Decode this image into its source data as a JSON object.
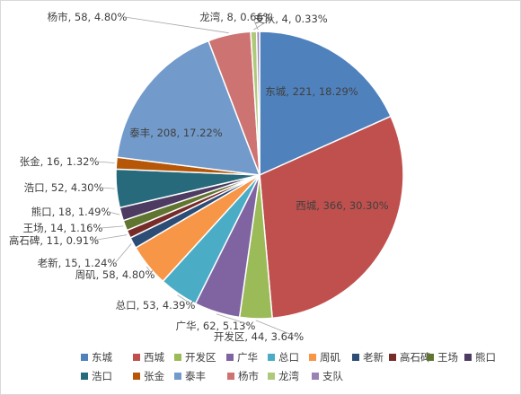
{
  "chart_data": {
    "type": "pie",
    "title": "",
    "slices": [
      {
        "name": "东城",
        "value": 221,
        "percent": "18.29%",
        "color": "#4f81bd"
      },
      {
        "name": "西城",
        "value": 366,
        "percent": "30.30%",
        "color": "#c0504d"
      },
      {
        "name": "开发区",
        "value": 44,
        "percent": "3.64%",
        "color": "#9bbb59"
      },
      {
        "name": "广华",
        "value": 62,
        "percent": "5.13%",
        "color": "#8064a2"
      },
      {
        "name": "总口",
        "value": 53,
        "percent": "4.39%",
        "color": "#4bacc6"
      },
      {
        "name": "周矶",
        "value": 58,
        "percent": "4.80%",
        "color": "#f79646"
      },
      {
        "name": "老新",
        "value": 15,
        "percent": "1.24%",
        "color": "#2c4d75"
      },
      {
        "name": "高石碑",
        "value": 11,
        "percent": "0.91%",
        "color": "#772c2a"
      },
      {
        "name": "王场",
        "value": 14,
        "percent": "1.16%",
        "color": "#5f7530"
      },
      {
        "name": "熊口",
        "value": 18,
        "percent": "1.49%",
        "color": "#4d3b62"
      },
      {
        "name": "浩口",
        "value": 52,
        "percent": "4.30%",
        "color": "#276a7c"
      },
      {
        "name": "张金",
        "value": 16,
        "percent": "1.32%",
        "color": "#b65708"
      },
      {
        "name": "泰丰",
        "value": 208,
        "percent": "17.22%",
        "color": "#729aca"
      },
      {
        "name": "杨市",
        "value": 58,
        "percent": "4.80%",
        "color": "#cd7371"
      },
      {
        "name": "龙湾",
        "value": 8,
        "percent": "0.66%",
        "color": "#afc97a"
      },
      {
        "name": "支队",
        "value": 4,
        "percent": "0.33%",
        "color": "#9983b5"
      }
    ],
    "legend": {
      "position": "bottom"
    }
  }
}
